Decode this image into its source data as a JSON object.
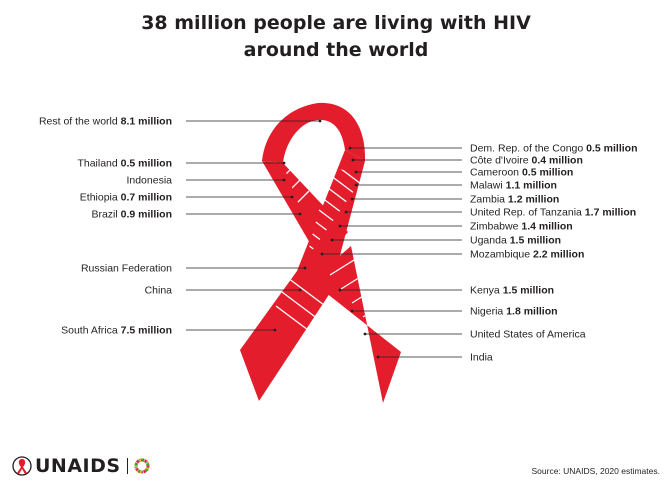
{
  "title_lines": [
    "38 million people are living with HIV",
    "around the world"
  ],
  "source": "Source: UNAIDS, 2020 estimates.",
  "logo_text": "UNAIDS",
  "colors": {
    "ribbon": "#e41d2d",
    "stripe": "#ffffff",
    "leader": "#231f20",
    "text": "#231f20"
  },
  "chart_data": {
    "type": "other",
    "title": "38 million people are living with HIV around the world",
    "unit": "million",
    "left_items": [
      {
        "label": "Rest of the world",
        "value": 8.1,
        "value_text": "8.1 million"
      },
      {
        "label": "Thailand",
        "value": 0.5,
        "value_text": "0.5 million"
      },
      {
        "label": "Indonesia",
        "value": null,
        "value_text": ""
      },
      {
        "label": "Ethiopia",
        "value": 0.7,
        "value_text": "0.7 million"
      },
      {
        "label": "Brazil",
        "value": 0.9,
        "value_text": "0.9 million"
      },
      {
        "label": "Russian Federation",
        "value": null,
        "value_text": ""
      },
      {
        "label": "China",
        "value": null,
        "value_text": ""
      },
      {
        "label": "South Africa",
        "value": 7.5,
        "value_text": "7.5 million"
      }
    ],
    "right_items": [
      {
        "label": "Dem. Rep. of the Congo",
        "value": 0.5,
        "value_text": "0.5 million"
      },
      {
        "label": "Côte d'Ivoire",
        "value": 0.4,
        "value_text": "0.4 million"
      },
      {
        "label": "Cameroon",
        "value": 0.5,
        "value_text": "0.5 million"
      },
      {
        "label": "Malawi",
        "value": 1.1,
        "value_text": "1.1 million"
      },
      {
        "label": "Zambia",
        "value": 1.2,
        "value_text": "1.2 million"
      },
      {
        "label": "United Rep. of Tanzania",
        "value": 1.7,
        "value_text": "1.7 million"
      },
      {
        "label": "Zimbabwe",
        "value": 1.4,
        "value_text": "1.4 million"
      },
      {
        "label": "Uganda",
        "value": 1.5,
        "value_text": "1.5 million"
      },
      {
        "label": "Mozambique",
        "value": 2.2,
        "value_text": "2.2 million"
      },
      {
        "label": "Kenya",
        "value": 1.5,
        "value_text": "1.5 million"
      },
      {
        "label": "Nigeria",
        "value": 1.8,
        "value_text": "1.8 million"
      },
      {
        "label": "United States of America",
        "value": null,
        "value_text": ""
      },
      {
        "label": "India",
        "value": null,
        "value_text": ""
      }
    ]
  }
}
